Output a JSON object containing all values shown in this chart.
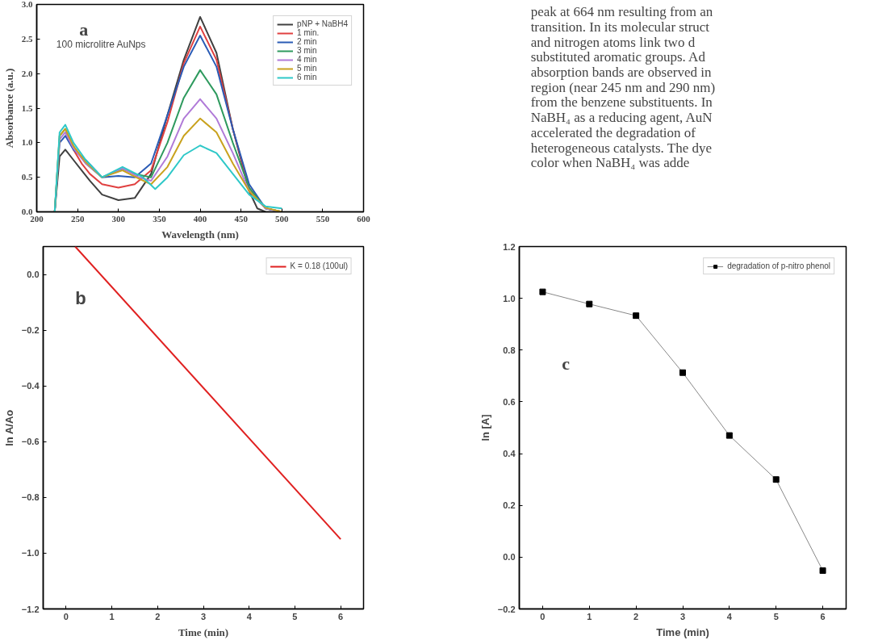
{
  "chart_data": [
    {
      "type": "line",
      "xlabel": "Wavelength (nm)",
      "ylabel": "Absorbance (a.u.)",
      "annotations": [
        "a",
        "100 microlitre AuNps"
      ],
      "xlim": [
        200,
        600
      ],
      "ylim": [
        0,
        3
      ],
      "xticks": [
        200,
        250,
        300,
        350,
        400,
        450,
        500,
        550,
        600
      ],
      "yticks": [
        {
          "value": 0,
          "label": "0.0"
        },
        {
          "value": 0.5,
          "label": "0.5"
        },
        {
          "value": 1,
          "label": "1.0"
        },
        {
          "value": 1.5,
          "label": "1.5"
        },
        {
          "value": 2,
          "label": "2.0"
        },
        {
          "value": 2.5,
          "label": "2.5"
        },
        {
          "value": 3,
          "label": "3.0"
        }
      ],
      "legend": "top right",
      "series": [
        {
          "name": "pNP + NaBH4",
          "color": "#404040",
          "x": [
            222,
            228,
            235,
            245,
            255,
            265,
            280,
            300,
            320,
            340,
            360,
            380,
            400,
            420,
            440,
            460,
            470,
            480
          ],
          "values": [
            0,
            0.8,
            0.9,
            0.75,
            0.6,
            0.45,
            0.25,
            0.17,
            0.2,
            0.55,
            1.4,
            2.2,
            2.82,
            2.3,
            1.2,
            0.3,
            0.05,
            0
          ]
        },
        {
          "name": "1 min.",
          "color": "#e04040",
          "x": [
            235,
            245,
            255,
            265,
            280,
            300,
            320,
            340,
            360,
            380,
            400,
            420,
            440,
            460,
            480,
            500
          ],
          "values": [
            1.15,
            0.9,
            0.7,
            0.55,
            0.4,
            0.35,
            0.4,
            0.6,
            1.3,
            2.15,
            2.68,
            2.2,
            1.2,
            0.35,
            0.05,
            0
          ]
        },
        {
          "name": "2 min",
          "color": "#2a5bb5",
          "x": [
            222,
            228,
            235,
            245,
            260,
            280,
            300,
            320,
            340,
            360,
            380,
            400,
            420,
            440,
            460,
            480,
            500
          ],
          "values": [
            0,
            1.0,
            1.1,
            0.9,
            0.75,
            0.5,
            0.52,
            0.5,
            0.7,
            1.4,
            2.1,
            2.55,
            2.1,
            1.2,
            0.4,
            0.05,
            0
          ]
        },
        {
          "name": "3 min",
          "color": "#2e9a5e",
          "x": [
            222,
            228,
            235,
            245,
            260,
            280,
            305,
            320,
            340,
            360,
            380,
            400,
            420,
            440,
            460,
            480,
            500
          ],
          "values": [
            0,
            1.1,
            1.2,
            0.95,
            0.7,
            0.5,
            0.62,
            0.55,
            0.5,
            1.0,
            1.65,
            2.05,
            1.7,
            1.0,
            0.35,
            0.05,
            0
          ]
        },
        {
          "name": "4 min",
          "color": "#b07ad8",
          "x": [
            222,
            228,
            235,
            245,
            260,
            280,
            305,
            325,
            340,
            360,
            380,
            400,
            420,
            440,
            460,
            480,
            500
          ],
          "values": [
            0,
            1.05,
            1.15,
            0.92,
            0.7,
            0.5,
            0.63,
            0.5,
            0.45,
            0.8,
            1.35,
            1.63,
            1.35,
            0.85,
            0.3,
            0.05,
            0
          ]
        },
        {
          "name": "5 min",
          "color": "#c9a21e",
          "x": [
            222,
            228,
            235,
            245,
            260,
            280,
            305,
            325,
            340,
            360,
            380,
            400,
            420,
            440,
            460,
            480,
            500
          ],
          "values": [
            0,
            1.1,
            1.2,
            0.95,
            0.72,
            0.5,
            0.6,
            0.48,
            0.4,
            0.65,
            1.1,
            1.35,
            1.15,
            0.7,
            0.3,
            0.06,
            0
          ]
        },
        {
          "name": "6 min",
          "color": "#2ec8c8",
          "x": [
            222,
            228,
            235,
            245,
            260,
            280,
            305,
            330,
            345,
            360,
            380,
            400,
            420,
            440,
            460,
            480,
            500
          ],
          "values": [
            0,
            1.15,
            1.26,
            1.0,
            0.75,
            0.5,
            0.65,
            0.5,
            0.33,
            0.5,
            0.82,
            0.96,
            0.85,
            0.55,
            0.25,
            0.08,
            0.05
          ]
        }
      ]
    },
    {
      "type": "other",
      "annotations": [
        "peak at 664 nm resulting from an",
        "transition. In its molecular struct",
        "and nitrogen atoms link two d",
        "substituted aromatic groups. Ad",
        "absorption bands are observed in",
        "region (near 245 nm and 290 nm)",
        "from the benzene substituents. In",
        "NaBH₄ as a reducing agent, AuN",
        "accelerated the degradation of",
        "heterogeneous catalysts. The dye",
        "color when NaBH₄ was adde"
      ]
    },
    {
      "type": "line",
      "xlabel": "Time (min)",
      "ylabel": "ln A/Ao",
      "annotations": [
        "b"
      ],
      "xlim": [
        -0.5,
        6.5
      ],
      "ylim": [
        -1.2,
        0.1
      ],
      "xticks": [
        0,
        1,
        2,
        3,
        4,
        5,
        6
      ],
      "yticks": [
        {
          "value": 0,
          "label": "0.0"
        },
        {
          "value": -0.2,
          "label": "−0.2"
        },
        {
          "value": -0.4,
          "label": "−0.4"
        },
        {
          "value": -0.6,
          "label": "−0.6"
        },
        {
          "value": -0.8,
          "label": "−0.8"
        },
        {
          "value": -1,
          "label": "−1.0"
        },
        {
          "value": -1.2,
          "label": "−1.2"
        }
      ],
      "legend": "top right",
      "series": [
        {
          "name": "K = 0.18 (100ul)",
          "color": "#e02020",
          "x": [
            0.2,
            6
          ],
          "values": [
            0.1,
            -0.95
          ]
        }
      ]
    },
    {
      "type": "line",
      "xlabel": "Time (min)",
      "ylabel": "ln [A]",
      "annotations": [
        "c"
      ],
      "xlim": [
        -0.5,
        6.5
      ],
      "ylim": [
        -0.2,
        1.2
      ],
      "xticks": [
        0,
        1,
        2,
        3,
        4,
        5,
        6
      ],
      "yticks": [
        {
          "value": -0.2,
          "label": "−0.2"
        },
        {
          "value": 0,
          "label": "0.0"
        },
        {
          "value": 0.2,
          "label": "0.2"
        },
        {
          "value": 0.4,
          "label": "0.4"
        },
        {
          "value": 0.6,
          "label": "0.6"
        },
        {
          "value": 0.8,
          "label": "0.8"
        },
        {
          "value": 1,
          "label": "1.0"
        },
        {
          "value": 1.2,
          "label": "1.2"
        }
      ],
      "legend": "top right",
      "marker": "square",
      "series": [
        {
          "name": "degradation of p-nitro phenol",
          "color": "#000000",
          "x": [
            0,
            1,
            2,
            3,
            4,
            5,
            6
          ],
          "values": [
            1.025,
            0.978,
            0.933,
            0.713,
            0.47,
            0.3,
            -0.052
          ]
        }
      ]
    }
  ]
}
